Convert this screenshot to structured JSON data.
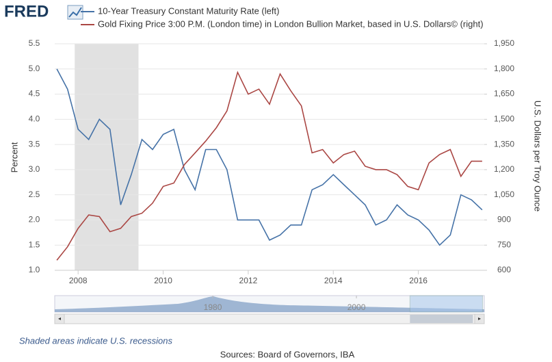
{
  "logo": "FRED",
  "chart_data": {
    "type": "line",
    "x": [
      2007.5,
      2007.75,
      2008,
      2008.25,
      2008.5,
      2008.75,
      2009,
      2009.25,
      2009.5,
      2009.75,
      2010,
      2010.25,
      2010.5,
      2010.75,
      2011,
      2011.25,
      2011.5,
      2011.75,
      2012,
      2012.25,
      2012.5,
      2012.75,
      2013,
      2013.25,
      2013.5,
      2013.75,
      2014,
      2014.25,
      2014.5,
      2014.75,
      2015,
      2015.25,
      2015.5,
      2015.75,
      2016,
      2016.25,
      2016.5,
      2016.75,
      2017,
      2017.25,
      2017.5
    ],
    "series": [
      {
        "name": "10-Year Treasury Constant Maturity Rate (left)",
        "color": "#4572a7",
        "axis": "y",
        "values": [
          5.0,
          4.6,
          3.8,
          3.6,
          4.0,
          3.8,
          2.3,
          2.9,
          3.6,
          3.4,
          3.7,
          3.8,
          3.0,
          2.6,
          3.4,
          3.4,
          3.0,
          2.0,
          2.0,
          2.0,
          1.6,
          1.7,
          1.9,
          1.9,
          2.6,
          2.7,
          2.9,
          2.7,
          2.5,
          2.3,
          1.9,
          2.0,
          2.3,
          2.1,
          2.0,
          1.8,
          1.5,
          1.7,
          2.5,
          2.4,
          2.2
        ]
      },
      {
        "name": "Gold Fixing Price 3:00 P.M. (London time) in London Bullion Market, based in U.S. Dollars© (right)",
        "color": "#aa4643",
        "axis": "y2",
        "values": [
          660,
          740,
          850,
          930,
          920,
          830,
          850,
          920,
          940,
          1000,
          1100,
          1120,
          1230,
          1300,
          1370,
          1450,
          1550,
          1780,
          1650,
          1680,
          1590,
          1770,
          1670,
          1580,
          1300,
          1320,
          1240,
          1290,
          1310,
          1220,
          1200,
          1200,
          1170,
          1100,
          1080,
          1240,
          1290,
          1320,
          1160,
          1250,
          1250
        ]
      }
    ],
    "xlim": [
      2007.45,
      2017.55
    ],
    "xticks": [
      2008,
      2010,
      2012,
      2014,
      2016
    ],
    "ylim": [
      1.0,
      5.5
    ],
    "yticks": [
      {
        "value": 1.0,
        "label": "1.0"
      },
      1.5,
      {
        "value": 2.0,
        "label": "2.0"
      },
      2.5,
      {
        "value": 3.0,
        "label": "3.0"
      },
      3.5,
      {
        "value": 4.0,
        "label": "4.0"
      },
      4.5,
      {
        "value": 5.0,
        "label": "5.0"
      },
      5.5
    ],
    "y2lim": [
      600,
      1950
    ],
    "y2ticks": [
      600,
      750,
      900,
      {
        "value": 1050,
        "label": "1,050"
      },
      {
        "value": 1200,
        "label": "1,200"
      },
      {
        "value": 1350,
        "label": "1,350"
      },
      {
        "value": 1500,
        "label": "1,500"
      },
      {
        "value": 1650,
        "label": "1,650"
      },
      {
        "value": 1800,
        "label": "1,800"
      },
      {
        "value": 1950,
        "label": "1,950"
      }
    ],
    "ylabel": "Percent",
    "y2label": "U.S. Dollars per Troy Ounce",
    "recessions": [
      {
        "start": 2007.92,
        "end": 2009.42
      }
    ],
    "recession_color": "#e1e1e1",
    "navigator": {
      "xlim": [
        1958,
        2017.8
      ],
      "xticks": [
        1980,
        2000
      ],
      "selection": [
        2007.45,
        2017.55
      ]
    },
    "note": "Shaded areas indicate U.S. recessions",
    "source": "Sources: Board of Governors, IBA"
  }
}
